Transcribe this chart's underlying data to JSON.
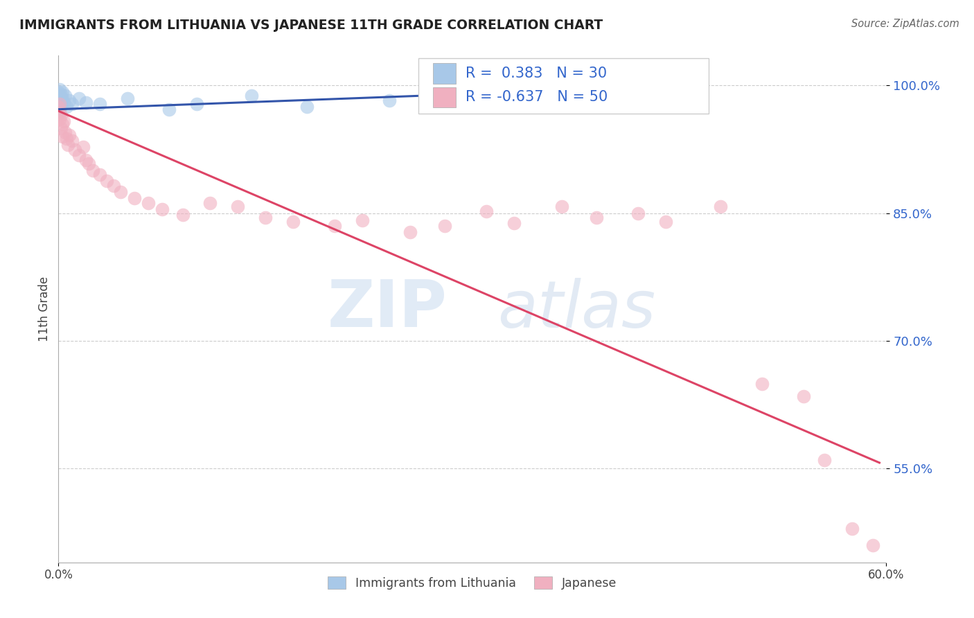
{
  "title": "IMMIGRANTS FROM LITHUANIA VS JAPANESE 11TH GRADE CORRELATION CHART",
  "source": "Source: ZipAtlas.com",
  "ylabel": "11th Grade",
  "xmin": 0.0,
  "xmax": 0.6,
  "ymin": 0.44,
  "ymax": 1.035,
  "yticks": [
    0.55,
    0.7,
    0.85,
    1.0
  ],
  "ytick_labels": [
    "55.0%",
    "70.0%",
    "85.0%",
    "100.0%"
  ],
  "xtick_labels": [
    "0.0%",
    "60.0%"
  ],
  "watermark_zip": "ZIP",
  "watermark_atlas": "atlas",
  "blue_color": "#a8c8e8",
  "pink_color": "#f0b0c0",
  "blue_line_color": "#3355aa",
  "pink_line_color": "#dd4466",
  "r_value_color": "#3366cc",
  "blue_scatter": [
    [
      0.0,
      0.992
    ],
    [
      0.0,
      0.985
    ],
    [
      0.0,
      0.978
    ],
    [
      0.0,
      0.972
    ],
    [
      0.001,
      0.995
    ],
    [
      0.001,
      0.988
    ],
    [
      0.001,
      0.982
    ],
    [
      0.001,
      0.975
    ],
    [
      0.001,
      0.968
    ],
    [
      0.002,
      0.99
    ],
    [
      0.002,
      0.983
    ],
    [
      0.002,
      0.976
    ],
    [
      0.003,
      0.992
    ],
    [
      0.003,
      0.985
    ],
    [
      0.004,
      0.98
    ],
    [
      0.005,
      0.988
    ],
    [
      0.006,
      0.975
    ],
    [
      0.008,
      0.982
    ],
    [
      0.01,
      0.978
    ],
    [
      0.015,
      0.985
    ],
    [
      0.02,
      0.98
    ],
    [
      0.03,
      0.978
    ],
    [
      0.05,
      0.985
    ],
    [
      0.08,
      0.972
    ],
    [
      0.1,
      0.978
    ],
    [
      0.14,
      0.988
    ],
    [
      0.18,
      0.975
    ],
    [
      0.24,
      0.982
    ],
    [
      0.34,
      0.998
    ],
    [
      0.43,
      0.992
    ]
  ],
  "pink_scatter": [
    [
      0.0,
      0.975
    ],
    [
      0.0,
      0.968
    ],
    [
      0.001,
      0.978
    ],
    [
      0.001,
      0.96
    ],
    [
      0.002,
      0.965
    ],
    [
      0.002,
      0.95
    ],
    [
      0.003,
      0.955
    ],
    [
      0.003,
      0.94
    ],
    [
      0.004,
      0.958
    ],
    [
      0.005,
      0.945
    ],
    [
      0.006,
      0.938
    ],
    [
      0.007,
      0.93
    ],
    [
      0.008,
      0.942
    ],
    [
      0.01,
      0.935
    ],
    [
      0.012,
      0.925
    ],
    [
      0.015,
      0.918
    ],
    [
      0.018,
      0.928
    ],
    [
      0.02,
      0.912
    ],
    [
      0.022,
      0.908
    ],
    [
      0.025,
      0.9
    ],
    [
      0.03,
      0.895
    ],
    [
      0.035,
      0.888
    ],
    [
      0.04,
      0.882
    ],
    [
      0.045,
      0.875
    ],
    [
      0.055,
      0.868
    ],
    [
      0.065,
      0.862
    ],
    [
      0.075,
      0.855
    ],
    [
      0.09,
      0.848
    ],
    [
      0.11,
      0.862
    ],
    [
      0.13,
      0.858
    ],
    [
      0.15,
      0.845
    ],
    [
      0.17,
      0.84
    ],
    [
      0.2,
      0.835
    ],
    [
      0.22,
      0.842
    ],
    [
      0.255,
      0.828
    ],
    [
      0.28,
      0.835
    ],
    [
      0.31,
      0.852
    ],
    [
      0.33,
      0.838
    ],
    [
      0.365,
      0.858
    ],
    [
      0.39,
      0.845
    ],
    [
      0.42,
      0.85
    ],
    [
      0.44,
      0.84
    ],
    [
      0.48,
      0.858
    ],
    [
      0.51,
      0.65
    ],
    [
      0.54,
      0.635
    ],
    [
      0.555,
      0.56
    ],
    [
      0.575,
      0.48
    ],
    [
      0.59,
      0.46
    ]
  ],
  "blue_line_x": [
    0.0,
    0.43
  ],
  "blue_line_y": [
    0.972,
    0.998
  ],
  "pink_line_x": [
    0.0,
    0.595
  ],
  "pink_line_y": [
    0.97,
    0.557
  ]
}
